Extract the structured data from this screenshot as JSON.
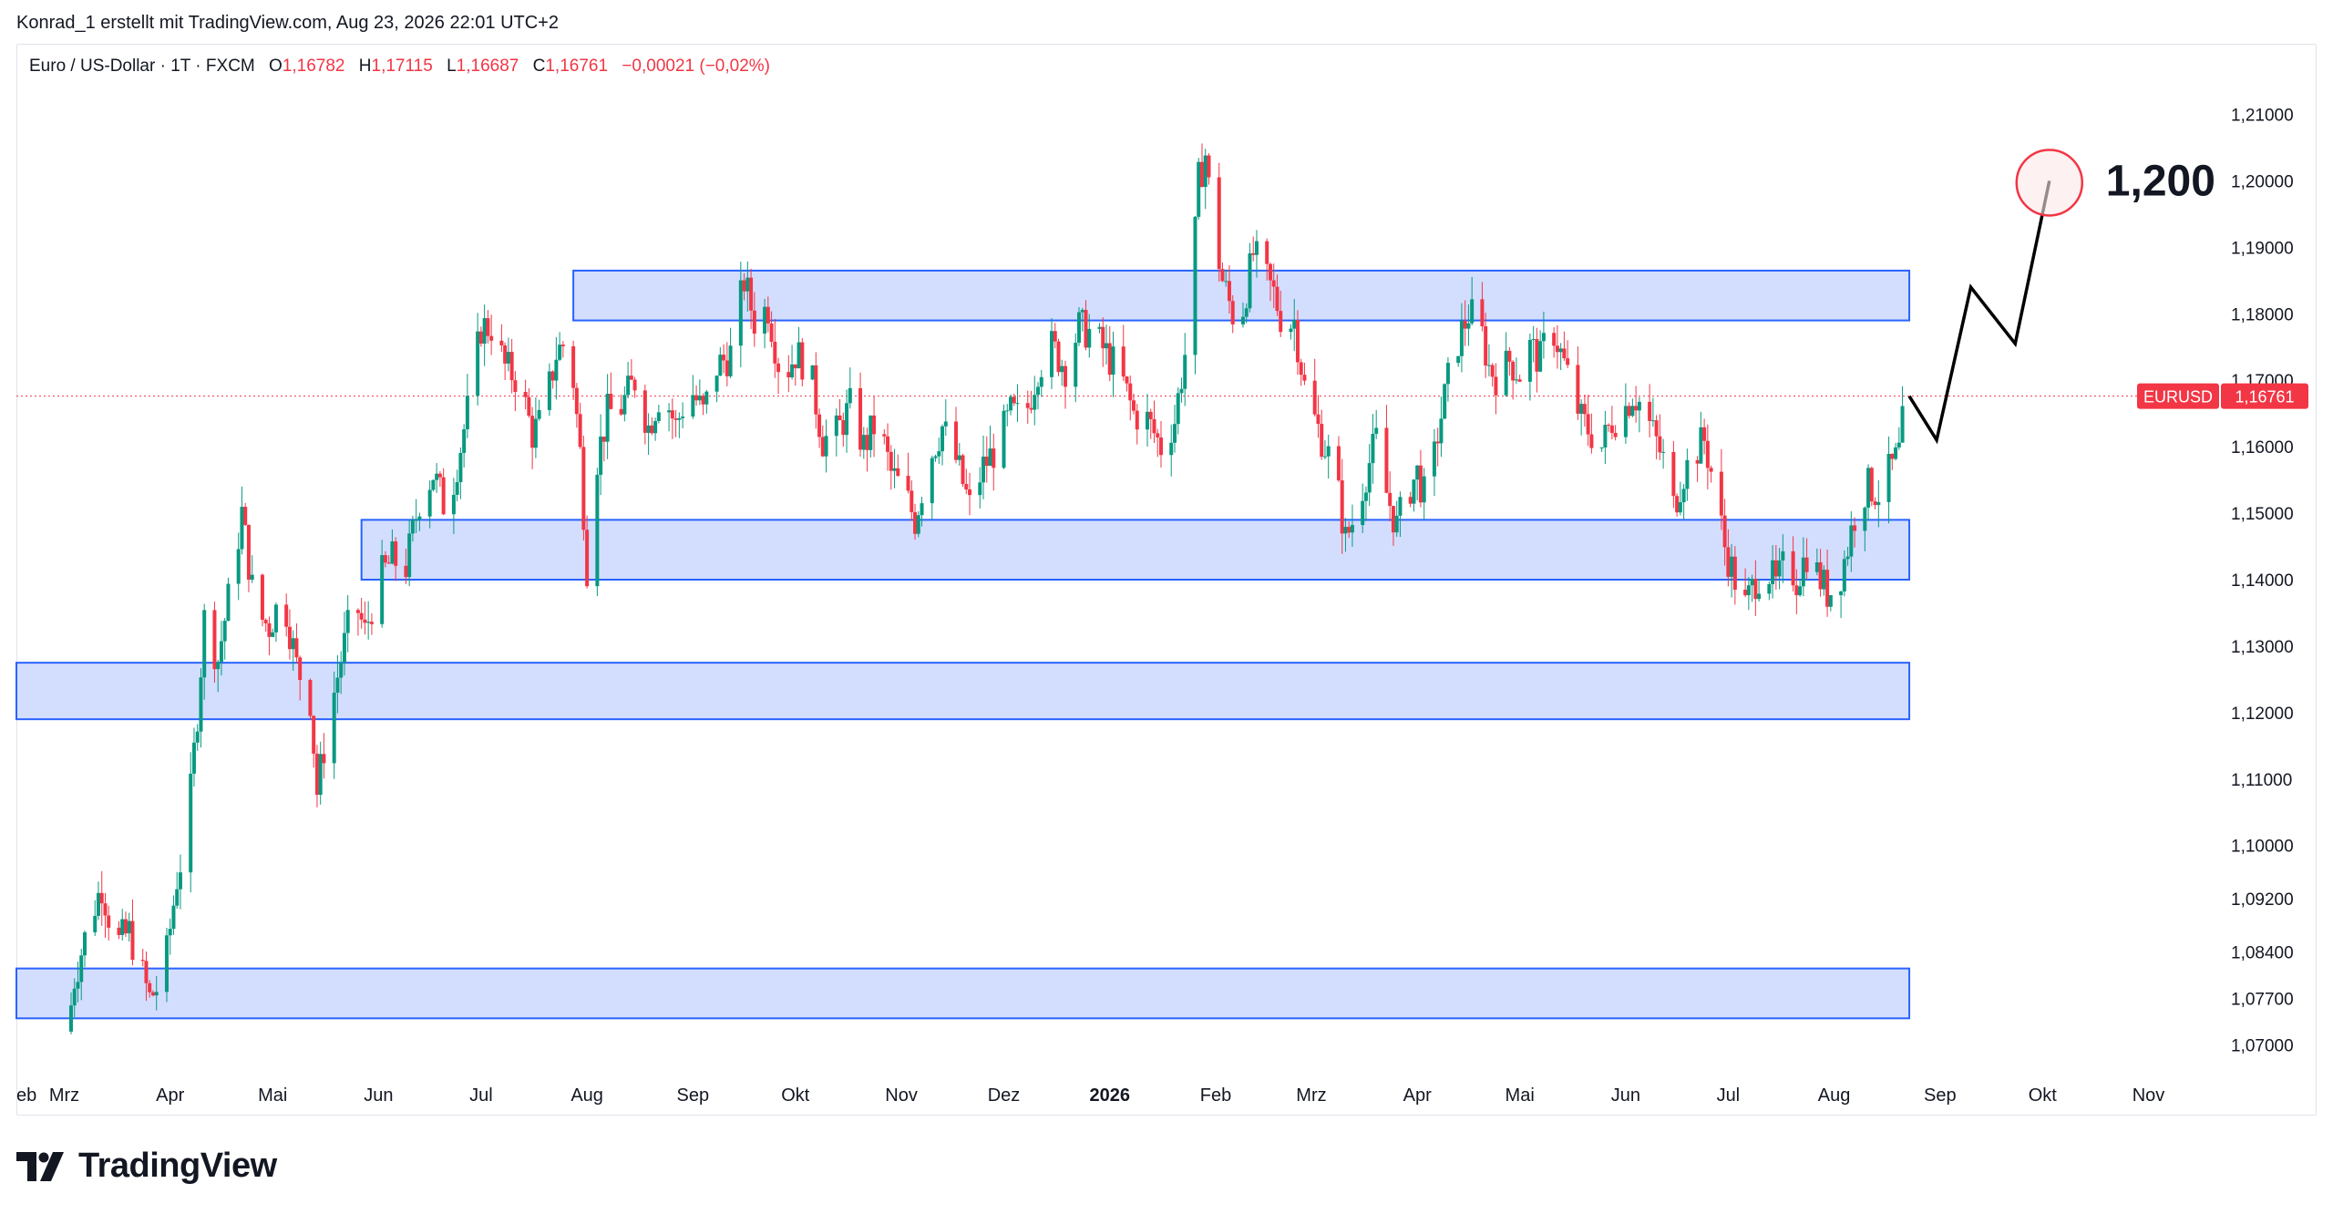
{
  "header": {
    "attribution": "Konrad_1 erstellt mit TradingView.com, Aug 23, 2026 22:01 UTC+2"
  },
  "legend": {
    "symbol": "Euro / US-Dollar · 1T · FXCM",
    "open_label": "O",
    "open": "1,16782",
    "high_label": "H",
    "high": "1,17115",
    "low_label": "L",
    "low": "1,16687",
    "close_label": "C",
    "close": "1,16761",
    "change": "−0,00021 (−0,02%)"
  },
  "footer": {
    "brand": "TradingView"
  },
  "chart_data": {
    "type": "candlestick",
    "colors": {
      "up": "#089981",
      "down": "#f23645",
      "zone_fill": "#d1dcff",
      "zone_border": "#2962ff",
      "forecast": "#000000",
      "target_circle": "#f23645"
    },
    "y_axis": {
      "side": "right",
      "range": [
        1.0665,
        1.2135
      ],
      "ticks": [
        "1,21000",
        "1,20000",
        "1,19000",
        "1,18000",
        "1,17000",
        "1,16000",
        "1,15000",
        "1,14000",
        "1,13000",
        "1,12000",
        "1,11000",
        "1,10000",
        "1,09200",
        "1,08400",
        "1,07700",
        "1,07000"
      ],
      "tick_values": [
        1.21,
        1.2,
        1.19,
        1.18,
        1.17,
        1.16,
        1.15,
        1.14,
        1.13,
        1.12,
        1.11,
        1.1,
        1.092,
        1.084,
        1.077,
        1.07
      ]
    },
    "x_axis": {
      "labels": [
        {
          "text": "eb",
          "date": "2025-02-15"
        },
        {
          "text": "Mrz",
          "date": "2025-03-01"
        },
        {
          "text": "Apr",
          "date": "2025-04-01"
        },
        {
          "text": "Mai",
          "date": "2025-05-01"
        },
        {
          "text": "Jun",
          "date": "2025-06-01"
        },
        {
          "text": "Jul",
          "date": "2025-07-01"
        },
        {
          "text": "Aug",
          "date": "2025-08-01"
        },
        {
          "text": "Sep",
          "date": "2025-09-01"
        },
        {
          "text": "Okt",
          "date": "2025-10-01"
        },
        {
          "text": "Nov",
          "date": "2025-11-01"
        },
        {
          "text": "Dez",
          "date": "2025-12-01"
        },
        {
          "text": "2026",
          "date": "2026-01-01",
          "bold": true
        },
        {
          "text": "Feb",
          "date": "2026-02-01"
        },
        {
          "text": "Mrz",
          "date": "2026-03-01"
        },
        {
          "text": "Apr",
          "date": "2026-04-01"
        },
        {
          "text": "Mai",
          "date": "2026-05-01"
        },
        {
          "text": "Jun",
          "date": "2026-06-01"
        },
        {
          "text": "Jul",
          "date": "2026-07-01"
        },
        {
          "text": "Aug",
          "date": "2026-08-01"
        },
        {
          "text": "Sep",
          "date": "2026-09-01"
        },
        {
          "text": "Okt",
          "date": "2026-10-01"
        },
        {
          "text": "Nov",
          "date": "2026-11-01"
        }
      ],
      "range": [
        "2025-02-15",
        "2026-11-15"
      ]
    },
    "price_series": [
      {
        "date": "2025-03-02",
        "close": 1.072
      },
      {
        "date": "2025-03-04",
        "close": 1.08
      },
      {
        "date": "2025-03-08",
        "close": 1.088
      },
      {
        "date": "2025-03-12",
        "close": 1.094
      },
      {
        "date": "2025-03-16",
        "close": 1.085
      },
      {
        "date": "2025-03-20",
        "close": 1.087
      },
      {
        "date": "2025-03-26",
        "close": 1.077
      },
      {
        "date": "2025-03-30",
        "close": 1.08
      },
      {
        "date": "2025-04-03",
        "close": 1.095
      },
      {
        "date": "2025-04-06",
        "close": 1.102
      },
      {
        "date": "2025-04-09",
        "close": 1.12
      },
      {
        "date": "2025-04-11",
        "close": 1.134
      },
      {
        "date": "2025-04-15",
        "close": 1.128
      },
      {
        "date": "2025-04-19",
        "close": 1.14
      },
      {
        "date": "2025-04-22",
        "close": 1.15
      },
      {
        "date": "2025-04-26",
        "close": 1.135
      },
      {
        "date": "2025-04-30",
        "close": 1.133
      },
      {
        "date": "2025-05-04",
        "close": 1.138
      },
      {
        "date": "2025-05-08",
        "close": 1.127
      },
      {
        "date": "2025-05-12",
        "close": 1.122
      },
      {
        "date": "2025-05-14",
        "close": 1.108
      },
      {
        "date": "2025-05-17",
        "close": 1.118
      },
      {
        "date": "2025-05-21",
        "close": 1.128
      },
      {
        "date": "2025-05-25",
        "close": 1.137
      },
      {
        "date": "2025-05-28",
        "close": 1.132
      },
      {
        "date": "2025-06-01",
        "close": 1.14
      },
      {
        "date": "2025-06-05",
        "close": 1.143
      },
      {
        "date": "2025-06-09",
        "close": 1.142
      },
      {
        "date": "2025-06-13",
        "close": 1.152
      },
      {
        "date": "2025-06-17",
        "close": 1.156
      },
      {
        "date": "2025-06-21",
        "close": 1.15
      },
      {
        "date": "2025-06-25",
        "close": 1.16
      },
      {
        "date": "2025-06-28",
        "close": 1.168
      },
      {
        "date": "2025-07-01",
        "close": 1.178
      },
      {
        "date": "2025-07-04",
        "close": 1.178
      },
      {
        "date": "2025-07-08",
        "close": 1.172
      },
      {
        "date": "2025-07-12",
        "close": 1.17
      },
      {
        "date": "2025-07-16",
        "close": 1.162
      },
      {
        "date": "2025-07-19",
        "close": 1.164
      },
      {
        "date": "2025-07-23",
        "close": 1.174
      },
      {
        "date": "2025-07-26",
        "close": 1.176
      },
      {
        "date": "2025-07-28",
        "close": 1.17
      },
      {
        "date": "2025-07-30",
        "close": 1.159
      },
      {
        "date": "2025-08-01",
        "close": 1.142
      },
      {
        "date": "2025-08-03",
        "close": 1.156
      },
      {
        "date": "2025-08-07",
        "close": 1.165
      },
      {
        "date": "2025-08-11",
        "close": 1.166
      },
      {
        "date": "2025-08-15",
        "close": 1.17
      },
      {
        "date": "2025-08-19",
        "close": 1.163
      },
      {
        "date": "2025-08-23",
        "close": 1.169
      },
      {
        "date": "2025-08-27",
        "close": 1.163
      },
      {
        "date": "2025-08-31",
        "close": 1.169
      },
      {
        "date": "2025-09-04",
        "close": 1.165
      },
      {
        "date": "2025-09-08",
        "close": 1.172
      },
      {
        "date": "2025-09-12",
        "close": 1.174
      },
      {
        "date": "2025-09-16",
        "close": 1.185
      },
      {
        "date": "2025-09-19",
        "close": 1.179
      },
      {
        "date": "2025-09-23",
        "close": 1.181
      },
      {
        "date": "2025-09-27",
        "close": 1.17
      },
      {
        "date": "2025-10-01",
        "close": 1.174
      },
      {
        "date": "2025-10-05",
        "close": 1.172
      },
      {
        "date": "2025-10-09",
        "close": 1.161
      },
      {
        "date": "2025-10-13",
        "close": 1.162
      },
      {
        "date": "2025-10-17",
        "close": 1.166
      },
      {
        "date": "2025-10-21",
        "close": 1.16
      },
      {
        "date": "2025-10-25",
        "close": 1.164
      },
      {
        "date": "2025-10-29",
        "close": 1.156
      },
      {
        "date": "2025-11-02",
        "close": 1.153
      },
      {
        "date": "2025-11-05",
        "close": 1.149
      },
      {
        "date": "2025-11-09",
        "close": 1.158
      },
      {
        "date": "2025-11-13",
        "close": 1.163
      },
      {
        "date": "2025-11-17",
        "close": 1.158
      },
      {
        "date": "2025-11-21",
        "close": 1.151
      },
      {
        "date": "2025-11-25",
        "close": 1.157
      },
      {
        "date": "2025-11-29",
        "close": 1.16
      },
      {
        "date": "2025-12-03",
        "close": 1.165
      },
      {
        "date": "2025-12-07",
        "close": 1.164
      },
      {
        "date": "2025-12-11",
        "close": 1.172
      },
      {
        "date": "2025-12-15",
        "close": 1.175
      },
      {
        "date": "2025-12-19",
        "close": 1.172
      },
      {
        "date": "2025-12-23",
        "close": 1.178
      },
      {
        "date": "2025-12-27",
        "close": 1.177
      },
      {
        "date": "2025-12-31",
        "close": 1.174
      },
      {
        "date": "2026-01-04",
        "close": 1.171
      },
      {
        "date": "2026-01-08",
        "close": 1.165
      },
      {
        "date": "2026-01-12",
        "close": 1.164
      },
      {
        "date": "2026-01-16",
        "close": 1.16
      },
      {
        "date": "2026-01-20",
        "close": 1.164
      },
      {
        "date": "2026-01-23",
        "close": 1.174
      },
      {
        "date": "2026-01-25",
        "close": 1.184
      },
      {
        "date": "2026-01-27",
        "close": 1.2
      },
      {
        "date": "2026-01-29",
        "close": 1.204
      },
      {
        "date": "2026-01-31",
        "close": 1.194
      },
      {
        "date": "2026-02-03",
        "close": 1.185
      },
      {
        "date": "2026-02-06",
        "close": 1.18
      },
      {
        "date": "2026-02-09",
        "close": 1.181
      },
      {
        "date": "2026-02-12",
        "close": 1.189
      },
      {
        "date": "2026-02-15",
        "close": 1.186
      },
      {
        "date": "2026-02-18",
        "close": 1.183
      },
      {
        "date": "2026-02-21",
        "close": 1.178
      },
      {
        "date": "2026-02-24",
        "close": 1.179
      },
      {
        "date": "2026-02-27",
        "close": 1.169
      },
      {
        "date": "2026-03-02",
        "close": 1.164
      },
      {
        "date": "2026-03-05",
        "close": 1.16
      },
      {
        "date": "2026-03-08",
        "close": 1.156
      },
      {
        "date": "2026-03-11",
        "close": 1.146
      },
      {
        "date": "2026-03-14",
        "close": 1.15
      },
      {
        "date": "2026-03-17",
        "close": 1.156
      },
      {
        "date": "2026-03-20",
        "close": 1.161
      },
      {
        "date": "2026-03-23",
        "close": 1.153
      },
      {
        "date": "2026-03-26",
        "close": 1.148
      },
      {
        "date": "2026-03-29",
        "close": 1.153
      },
      {
        "date": "2026-04-01",
        "close": 1.156
      },
      {
        "date": "2026-04-04",
        "close": 1.151
      },
      {
        "date": "2026-04-07",
        "close": 1.162
      },
      {
        "date": "2026-04-10",
        "close": 1.17
      },
      {
        "date": "2026-04-13",
        "close": 1.176
      },
      {
        "date": "2026-04-16",
        "close": 1.18
      },
      {
        "date": "2026-04-19",
        "close": 1.179
      },
      {
        "date": "2026-04-22",
        "close": 1.172
      },
      {
        "date": "2026-04-25",
        "close": 1.17
      },
      {
        "date": "2026-04-28",
        "close": 1.173
      },
      {
        "date": "2026-05-01",
        "close": 1.171
      },
      {
        "date": "2026-05-04",
        "close": 1.175
      },
      {
        "date": "2026-05-07",
        "close": 1.173
      },
      {
        "date": "2026-05-10",
        "close": 1.179
      },
      {
        "date": "2026-05-13",
        "close": 1.174
      },
      {
        "date": "2026-05-16",
        "close": 1.169
      },
      {
        "date": "2026-05-19",
        "close": 1.164
      },
      {
        "date": "2026-05-22",
        "close": 1.162
      },
      {
        "date": "2026-05-25",
        "close": 1.16
      },
      {
        "date": "2026-05-28",
        "close": 1.164
      },
      {
        "date": "2026-05-31",
        "close": 1.165
      },
      {
        "date": "2026-06-03",
        "close": 1.168
      },
      {
        "date": "2026-06-06",
        "close": 1.166
      },
      {
        "date": "2026-06-09",
        "close": 1.162
      },
      {
        "date": "2026-06-12",
        "close": 1.158
      },
      {
        "date": "2026-06-15",
        "close": 1.151
      },
      {
        "date": "2026-06-18",
        "close": 1.156
      },
      {
        "date": "2026-06-21",
        "close": 1.159
      },
      {
        "date": "2026-06-24",
        "close": 1.161
      },
      {
        "date": "2026-06-27",
        "close": 1.154
      },
      {
        "date": "2026-06-30",
        "close": 1.145
      },
      {
        "date": "2026-07-03",
        "close": 1.14
      },
      {
        "date": "2026-07-06",
        "close": 1.136
      },
      {
        "date": "2026-07-09",
        "close": 1.14
      },
      {
        "date": "2026-07-12",
        "close": 1.142
      },
      {
        "date": "2026-07-15",
        "close": 1.139
      },
      {
        "date": "2026-07-18",
        "close": 1.143
      },
      {
        "date": "2026-07-21",
        "close": 1.14
      },
      {
        "date": "2026-07-24",
        "close": 1.144
      },
      {
        "date": "2026-07-27",
        "close": 1.141
      },
      {
        "date": "2026-07-30",
        "close": 1.138
      },
      {
        "date": "2026-08-02",
        "close": 1.139
      },
      {
        "date": "2026-08-05",
        "close": 1.145
      },
      {
        "date": "2026-08-08",
        "close": 1.152
      },
      {
        "date": "2026-08-11",
        "close": 1.154
      },
      {
        "date": "2026-08-14",
        "close": 1.153
      },
      {
        "date": "2026-08-17",
        "close": 1.156
      },
      {
        "date": "2026-08-20",
        "close": 1.159
      },
      {
        "date": "2026-08-22",
        "close": 1.1676
      }
    ],
    "zones": [
      {
        "from": "2025-07-28",
        "to": "2026-08-23",
        "top": 1.1865,
        "bottom": 1.179
      },
      {
        "from": "2025-05-27",
        "to": "2026-08-23",
        "top": 1.149,
        "bottom": 1.14
      },
      {
        "from": "2025-02-15",
        "to": "2026-08-23",
        "top": 1.1275,
        "bottom": 1.119
      },
      {
        "from": "2025-02-15",
        "to": "2026-08-23",
        "top": 1.0815,
        "bottom": 1.074
      }
    ],
    "forecast_path": [
      {
        "date": "2026-08-23",
        "value": 1.1676
      },
      {
        "date": "2026-08-31",
        "value": 1.161
      },
      {
        "date": "2026-09-10",
        "value": 1.184
      },
      {
        "date": "2026-09-23",
        "value": 1.1755
      },
      {
        "date": "2026-10-03",
        "value": 1.2
      }
    ],
    "target": {
      "date": "2026-10-03",
      "value": 1.2,
      "label": "1,200"
    },
    "last_price": {
      "value": 1.16761,
      "symbol_label": "EURUSD",
      "value_label": "1,16761"
    }
  }
}
